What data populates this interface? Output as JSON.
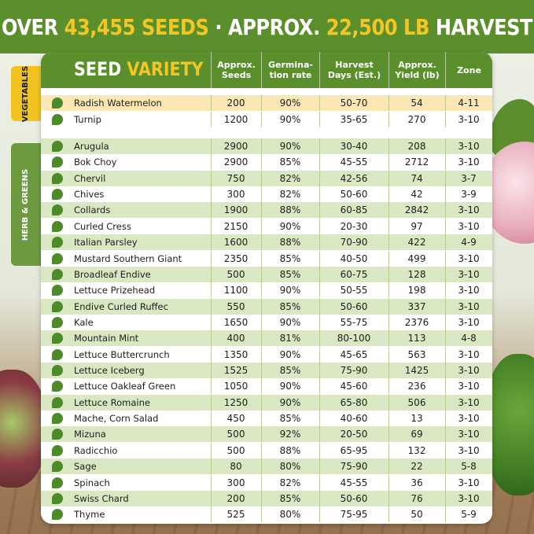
{
  "banner": {
    "prefix": "OVER",
    "seeds": "43,455 SEEDS",
    "sep": "·",
    "approx": "APPROX.",
    "harvest_amount": "22,500 LB",
    "harvest_word": "HARVEST"
  },
  "table": {
    "title_part1": "SEED",
    "title_part2": "VARIETY",
    "columns": [
      "Approx.\nSeeds",
      "Germina-\ntion rate",
      "Harvest\nDays (Est.)",
      "Approx.\nYield (lb)",
      "Zone"
    ],
    "category_vegetables": "VEGETABLES",
    "category_herbs": "HERB & GREENS",
    "vegetables": [
      {
        "name": "Radish Watermelon",
        "seeds": "200",
        "germ": "90%",
        "days": "50-70",
        "yield": "54",
        "zone": "4-11"
      },
      {
        "name": "Turnip",
        "seeds": "1200",
        "germ": "90%",
        "days": "35-65",
        "yield": "270",
        "zone": "3-10"
      }
    ],
    "herbs": [
      {
        "name": "Arugula",
        "seeds": "2900",
        "germ": "90%",
        "days": "30-40",
        "yield": "208",
        "zone": "3-10"
      },
      {
        "name": "Bok Choy",
        "seeds": "2900",
        "germ": "85%",
        "days": "45-55",
        "yield": "2712",
        "zone": "3-10"
      },
      {
        "name": "Chervil",
        "seeds": "750",
        "germ": "82%",
        "days": "42-56",
        "yield": "74",
        "zone": "3-7"
      },
      {
        "name": "Chives",
        "seeds": "300",
        "germ": "82%",
        "days": "50-60",
        "yield": "42",
        "zone": "3-9"
      },
      {
        "name": "Collards",
        "seeds": "1900",
        "germ": "88%",
        "days": "60-85",
        "yield": "2842",
        "zone": "3-10"
      },
      {
        "name": "Curled Cress",
        "seeds": "2150",
        "germ": "90%",
        "days": "20-30",
        "yield": "97",
        "zone": "3-10"
      },
      {
        "name": "Italian Parsley",
        "seeds": "1600",
        "germ": "88%",
        "days": "70-90",
        "yield": "422",
        "zone": "4-9"
      },
      {
        "name": "Mustard Southern Giant",
        "seeds": "2350",
        "germ": "85%",
        "days": "40-50",
        "yield": "499",
        "zone": "3-10"
      },
      {
        "name": "Broadleaf Endive",
        "seeds": "500",
        "germ": "85%",
        "days": "60-75",
        "yield": "128",
        "zone": "3-10"
      },
      {
        "name": "Lettuce Prizehead",
        "seeds": "1100",
        "germ": "90%",
        "days": "50-55",
        "yield": "198",
        "zone": "3-10"
      },
      {
        "name": "Endive Curled Ruffec",
        "seeds": "550",
        "germ": "85%",
        "days": "50-60",
        "yield": "337",
        "zone": "3-10"
      },
      {
        "name": "Kale",
        "seeds": "1650",
        "germ": "90%",
        "days": "55-75",
        "yield": "2376",
        "zone": "3-10"
      },
      {
        "name": "Mountain Mint",
        "seeds": "400",
        "germ": "81%",
        "days": "80-100",
        "yield": "113",
        "zone": "4-8"
      },
      {
        "name": "Lettuce Buttercrunch",
        "seeds": "1350",
        "germ": "90%",
        "days": "45-65",
        "yield": "563",
        "zone": "3-10"
      },
      {
        "name": "Lettuce Iceberg",
        "seeds": "1525",
        "germ": "85%",
        "days": "75-90",
        "yield": "1425",
        "zone": "3-10"
      },
      {
        "name": "Lettuce Oakleaf Green",
        "seeds": "1050",
        "germ": "90%",
        "days": "45-60",
        "yield": "236",
        "zone": "3-10"
      },
      {
        "name": "Lettuce Romaine",
        "seeds": "1250",
        "germ": "90%",
        "days": "65-80",
        "yield": "506",
        "zone": "3-10"
      },
      {
        "name": "Mache, Corn Salad",
        "seeds": "450",
        "germ": "85%",
        "days": "40-60",
        "yield": "13",
        "zone": "3-10"
      },
      {
        "name": "Mizuna",
        "seeds": "500",
        "germ": "92%",
        "days": "20-50",
        "yield": "69",
        "zone": "3-10"
      },
      {
        "name": "Radicchio",
        "seeds": "500",
        "germ": "88%",
        "days": "65-95",
        "yield": "132",
        "zone": "3-10"
      },
      {
        "name": "Sage",
        "seeds": "80",
        "germ": "80%",
        "days": "75-90",
        "yield": "22",
        "zone": "5-8"
      },
      {
        "name": "Spinach",
        "seeds": "300",
        "germ": "82%",
        "days": "45-55",
        "yield": "36",
        "zone": "3-10"
      },
      {
        "name": "Swiss Chard",
        "seeds": "200",
        "germ": "85%",
        "days": "50-60",
        "yield": "76",
        "zone": "3-10"
      },
      {
        "name": "Thyme",
        "seeds": "525",
        "germ": "80%",
        "days": "75-95",
        "yield": "50",
        "zone": "5-9"
      }
    ]
  },
  "colors": {
    "green": "#5b8f2c",
    "yellow": "#f3c623",
    "veg_row": "#fbe7b4",
    "herb_row": "#d9e8c2"
  },
  "icons": {
    "row_icon": "leaf-icon"
  }
}
